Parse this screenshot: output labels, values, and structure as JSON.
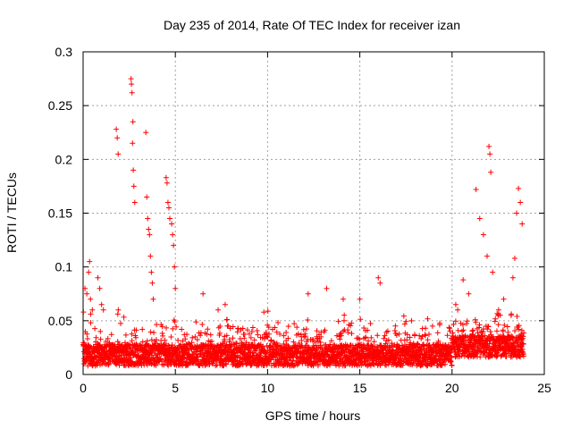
{
  "chart_data": {
    "type": "scatter",
    "title": "Day 235 of 2014, Rate Of TEC Index for receiver izan",
    "xlabel": "GPS time / hours",
    "ylabel": "ROTI / TECUs",
    "xlim": [
      0,
      25
    ],
    "ylim": [
      0,
      0.3
    ],
    "xticks": [
      0,
      5,
      10,
      15,
      20,
      25
    ],
    "xtick_labels": [
      "0",
      "5",
      "10",
      "15",
      "20",
      "25"
    ],
    "yticks": [
      0,
      0.05,
      0.1,
      0.15,
      0.2,
      0.25,
      0.3
    ],
    "ytick_labels": [
      "0",
      "0.05",
      "0.1",
      "0.15",
      "0.2",
      "0.25",
      "0.3"
    ],
    "grid": true,
    "marker": "+",
    "color": "#ff0000",
    "x_range_of_data": [
      0,
      23.9
    ],
    "series": [
      {
        "name": "ROTI",
        "x": [
          0.1,
          0.2,
          0.3,
          0.35,
          0.4,
          0.5,
          0.8,
          0.9,
          1.0,
          1.1,
          1.8,
          1.85,
          1.9,
          2.6,
          2.62,
          2.65,
          2.7,
          2.68,
          2.72,
          2.75,
          2.8,
          3.4,
          3.45,
          3.5,
          3.55,
          3.6,
          3.65,
          3.7,
          3.75,
          3.8,
          4.5,
          4.55,
          4.6,
          4.65,
          4.7,
          4.8,
          4.85,
          4.9,
          4.95,
          5.0,
          6.5,
          7.7,
          9.8,
          12.2,
          13.2,
          14.1,
          15.0,
          16.0,
          16.1,
          17.8,
          20.2,
          20.6,
          20.9,
          21.3,
          21.5,
          21.7,
          21.9,
          22.0,
          22.05,
          22.1,
          22.2,
          22.5,
          22.8,
          23.2,
          23.3,
          23.4,
          23.5,
          23.6,
          23.7,
          23.8
        ],
        "y": [
          0.08,
          0.075,
          0.095,
          0.105,
          0.07,
          0.06,
          0.09,
          0.08,
          0.065,
          0.06,
          0.228,
          0.22,
          0.205,
          0.275,
          0.27,
          0.262,
          0.235,
          0.215,
          0.19,
          0.175,
          0.16,
          0.225,
          0.165,
          0.145,
          0.135,
          0.13,
          0.11,
          0.095,
          0.085,
          0.07,
          0.183,
          0.178,
          0.16,
          0.155,
          0.145,
          0.14,
          0.13,
          0.12,
          0.1,
          0.08,
          0.075,
          0.065,
          0.058,
          0.075,
          0.08,
          0.07,
          0.07,
          0.09,
          0.085,
          0.05,
          0.065,
          0.088,
          0.075,
          0.172,
          0.145,
          0.13,
          0.11,
          0.212,
          0.205,
          0.188,
          0.095,
          0.055,
          0.07,
          0.055,
          0.09,
          0.108,
          0.15,
          0.173,
          0.16,
          0.14
        ]
      }
    ]
  }
}
